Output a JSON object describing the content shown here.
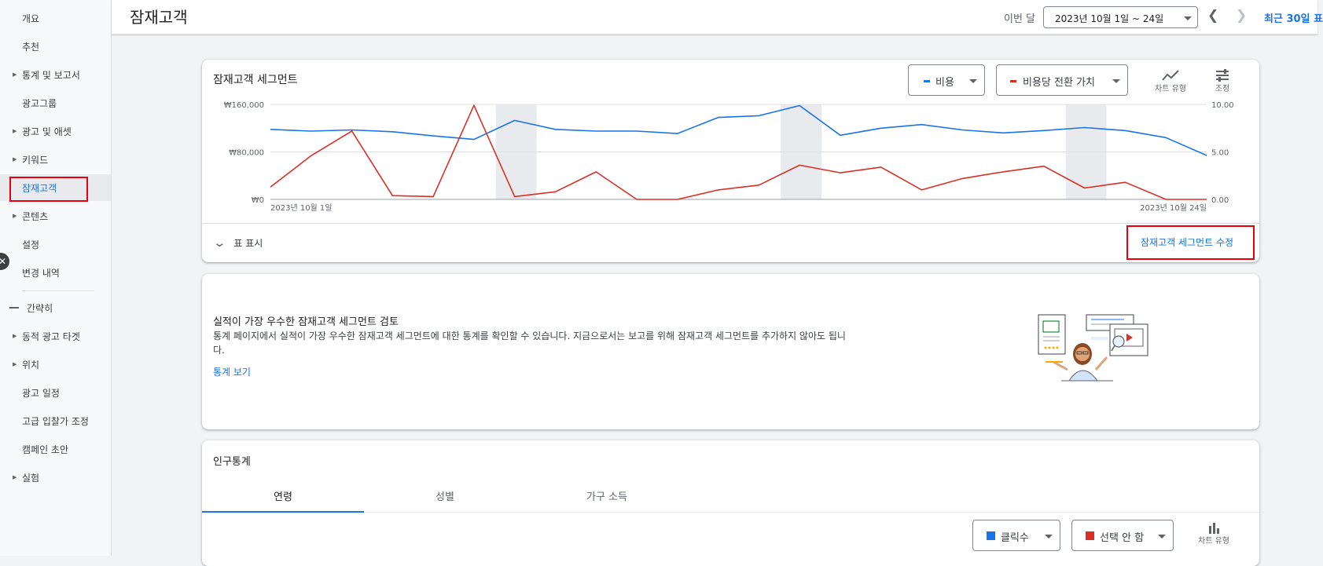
{
  "sidebar": {
    "items": [
      {
        "label": "개요",
        "arrow": false
      },
      {
        "label": "추천",
        "arrow": false
      },
      {
        "label": "통계 및 보고서",
        "arrow": true
      },
      {
        "label": "광고그룹",
        "arrow": false
      },
      {
        "label": "광고 및 애셋",
        "arrow": true
      },
      {
        "label": "키워드",
        "arrow": true
      },
      {
        "label": "잠재고객",
        "arrow": false,
        "active": true
      },
      {
        "label": "콘텐츠",
        "arrow": true
      },
      {
        "label": "설정",
        "arrow": false
      },
      {
        "label": "변경 내역",
        "arrow": false
      }
    ],
    "collapse_label": "간략히",
    "more_items": [
      {
        "label": "동적 광고 타겟",
        "arrow": true
      },
      {
        "label": "위치",
        "arrow": true
      },
      {
        "label": "광고 일정",
        "arrow": false
      },
      {
        "label": "고급 입찰가 조정",
        "arrow": false
      },
      {
        "label": "캠페인 초안",
        "arrow": false
      },
      {
        "label": "실험",
        "arrow": true
      }
    ]
  },
  "header": {
    "title": "잠재고객",
    "period_label": "이번 달",
    "date_range": "2023년 10월 1일 ~ 24일",
    "prev_icon": "chevron-left-icon",
    "next_icon": "chevron-right-icon",
    "recent_label": "최근 30일 표"
  },
  "segment_card": {
    "title": "잠재고객 세그먼트",
    "metric1": {
      "label": "비용",
      "color": "#1a73e8"
    },
    "metric2": {
      "label": "비용당 전환 가치",
      "color": "#d93025"
    },
    "chart_type_label": "차트 유형",
    "adjust_label": "조정",
    "show_table_label": "표 표시",
    "edit_link": "잠재고객 세그먼트 수정"
  },
  "chart_data": {
    "type": "line",
    "x_start_label": "2023년 10월 1일",
    "x_end_label": "2023년 10월 24일",
    "x": [
      1,
      2,
      3,
      4,
      5,
      6,
      7,
      8,
      9,
      10,
      11,
      12,
      13,
      14,
      15,
      16,
      17,
      18,
      19,
      20,
      21,
      22,
      23,
      24
    ],
    "left_axis": {
      "ticks": [
        "₩0",
        "₩80,000",
        "₩160,000"
      ],
      "ylim": [
        0,
        160000
      ]
    },
    "right_axis": {
      "ticks": [
        "0.00",
        "5.00",
        "10.00"
      ],
      "ylim": [
        0,
        10
      ]
    },
    "shaded_days": [
      7,
      14,
      21
    ],
    "grid": true,
    "series": [
      {
        "name": "비용",
        "axis": "left",
        "color": "#1a73e8",
        "values": [
          118000,
          115000,
          117000,
          114000,
          107000,
          101000,
          133000,
          118000,
          115000,
          115000,
          111000,
          138000,
          141000,
          158000,
          108000,
          120000,
          126000,
          117000,
          112000,
          116000,
          121000,
          116000,
          104000,
          74000
        ]
      },
      {
        "name": "비용당 전환 가치",
        "axis": "right",
        "color": "#d93025",
        "values": [
          1.3,
          4.6,
          7.2,
          0.4,
          0.3,
          9.9,
          0.3,
          0.8,
          2.9,
          0.0,
          0.0,
          1.0,
          1.5,
          3.6,
          2.8,
          3.4,
          1.0,
          2.2,
          2.9,
          3.5,
          1.2,
          1.8,
          0.0,
          0.0
        ]
      }
    ]
  },
  "review_card": {
    "title": "실적이 가장 우수한 잠재고객 세그먼트 검토",
    "body_line1": "통계 페이지에서 실적이 가장 우수한 잠재고객 세그먼트에 대한 통계를 확인할 수 있습니다. 지금으로서는 보고를 위해 잠재고객 세그먼트를 추가하지 않아도 됩니",
    "body_line2": "다.",
    "link": "통계 보기"
  },
  "demo_card": {
    "title": "인구통계",
    "tabs": [
      "연령",
      "성별",
      "가구 소득"
    ],
    "metric1": {
      "label": "클릭수",
      "color": "#1a73e8"
    },
    "metric2": {
      "label": "선택 안 함",
      "color": "#d93025"
    },
    "chart_type_label": "차트 유형"
  }
}
